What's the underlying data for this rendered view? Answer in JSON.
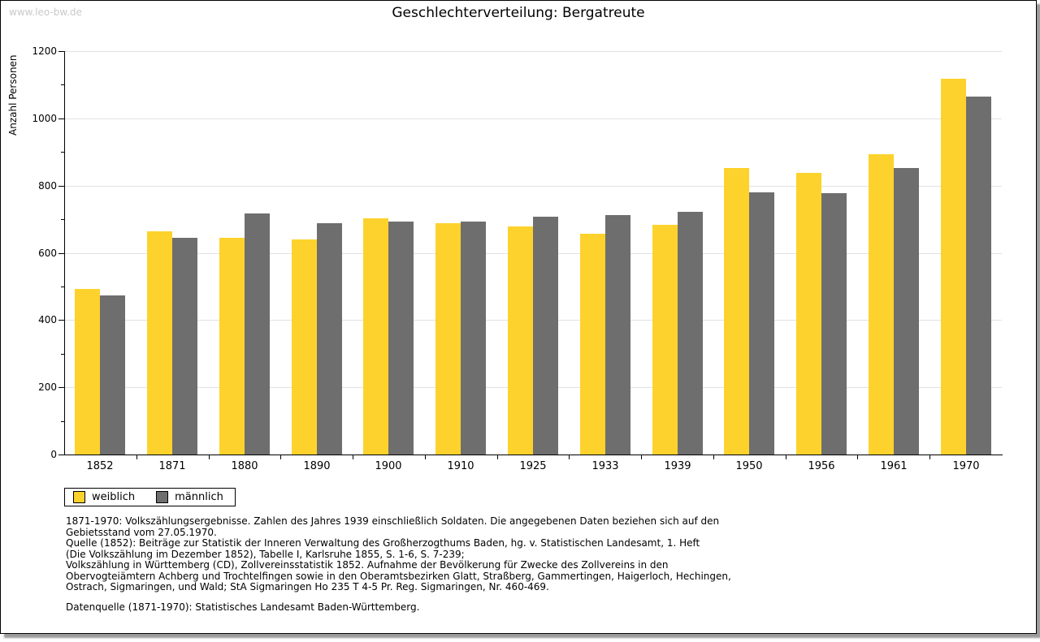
{
  "watermark": "www.leo-bw.de",
  "title": "Geschlechterverteilung: Bergatreute",
  "chart_data": {
    "type": "bar",
    "title": "Geschlechterverteilung: Bergatreute",
    "xlabel": "",
    "ylabel": "Anzahl Personen",
    "categories": [
      "1852",
      "1871",
      "1880",
      "1890",
      "1900",
      "1910",
      "1925",
      "1933",
      "1939",
      "1950",
      "1956",
      "1961",
      "1970"
    ],
    "series": [
      {
        "name": "weiblich",
        "color": "#fdd22c",
        "values": [
          493,
          663,
          644,
          639,
          702,
          689,
          678,
          656,
          683,
          852,
          838,
          893,
          1117
        ]
      },
      {
        "name": "männlich",
        "color": "#6e6e6e",
        "values": [
          473,
          645,
          718,
          689,
          692,
          694,
          707,
          713,
          723,
          781,
          777,
          853,
          1065
        ]
      }
    ],
    "ylim": [
      0,
      1200
    ],
    "ytick_major_step": 200,
    "ytick_minor_step": 100,
    "grid": true,
    "legend_position": "bottom-left"
  },
  "legend": {
    "items": [
      {
        "label": "weiblich",
        "color": "#fdd22c"
      },
      {
        "label": "männlich",
        "color": "#6e6e6e"
      }
    ]
  },
  "footnotes": {
    "lines": [
      "1871-1970: Volkszählungsergebnisse. Zahlen des Jahres 1939 einschließlich Soldaten. Die angegebenen Daten beziehen sich auf den",
      "Gebietsstand vom 27.05.1970.",
      "Quelle (1852): Beiträge zur Statistik der Inneren Verwaltung des Großherzogthums Baden, hg. v. Statistischen Landesamt, 1. Heft",
      "(Die Volkszählung im Dezember 1852), Tabelle I, Karlsruhe 1855, S. 1-6, S. 7-239;",
      "Volkszählung in Württemberg (CD), Zollvereinsstatistik 1852. Aufnahme der Bevölkerung für Zwecke des Zollvereins in den",
      "Obervogteiämtern Achberg und Trochtelfingen sowie in den Oberamtsbezirken Glatt, Straßberg, Gammertingen, Haigerloch, Hechingen,",
      "Ostrach, Sigmaringen, und Wald; StA Sigmaringen Ho 235 T 4-5 Pr. Reg. Sigmaringen, Nr. 460-469."
    ],
    "datasource": "Datenquelle (1871-1970): Statistisches Landesamt Baden-Württemberg."
  },
  "colors": {
    "female_bar": "#fdd22c",
    "male_bar": "#6e6e6e",
    "gridline": "#e2e2e2",
    "axis": "#000000",
    "watermark": "#c9c9c9",
    "frame_shadow": "#9b9b9b",
    "background": "#ffffff"
  }
}
